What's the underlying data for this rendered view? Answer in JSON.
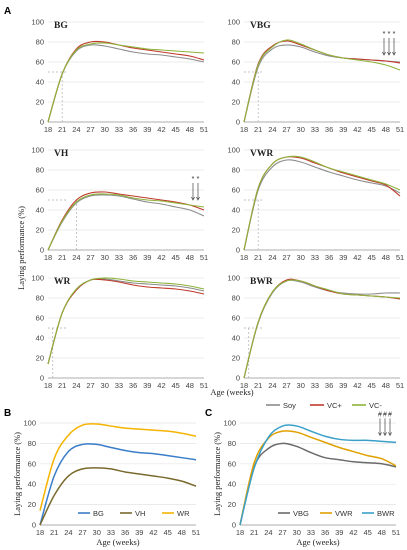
{
  "figure": {
    "panel_letters": [
      "A",
      "B",
      "C"
    ],
    "shared_ylabel": "Laying performance (%)",
    "shared_xlabel": "Age (weeks)",
    "legend_A": [
      "Soy",
      "VC+",
      "VC-"
    ],
    "colors": {
      "Soy": "#8c8c8c",
      "VC+": "#c0392b",
      "VC-": "#8db33a",
      "BG": "#3a7dc9",
      "VH": "#7a6a2e",
      "WR": "#f5b400",
      "VBG": "#6b6b6b",
      "VWR": "#e0a000",
      "BWR": "#3aa0c8",
      "ref_line": "#b0b0b0",
      "arrow": "#444444"
    }
  },
  "chart_data": [
    {
      "panel": "A",
      "title": "BG",
      "type": "line",
      "x": [
        18,
        21,
        24,
        27,
        30,
        33,
        36,
        39,
        42,
        45,
        48,
        51
      ],
      "ylim": [
        0,
        100
      ],
      "yticks": [
        0,
        20,
        40,
        60,
        80,
        100
      ],
      "xticks": [
        18,
        21,
        24,
        27,
        30,
        33,
        36,
        39,
        42,
        45,
        48,
        51
      ],
      "ref_x": 21,
      "ref_y": 50,
      "series": [
        {
          "name": "Soy",
          "values": [
            0,
            48,
            71,
            77,
            76,
            73,
            70,
            68,
            67,
            65,
            63,
            60
          ]
        },
        {
          "name": "VC+",
          "values": [
            0,
            48,
            73,
            80,
            80,
            77,
            74,
            72,
            70,
            68,
            66,
            62
          ]
        },
        {
          "name": "VC-",
          "values": [
            0,
            48,
            72,
            78,
            79,
            77,
            75,
            73,
            72,
            71,
            70,
            69
          ]
        }
      ],
      "significance_marks": []
    },
    {
      "panel": "A",
      "title": "VBG",
      "type": "line",
      "x": [
        18,
        21,
        24,
        27,
        30,
        33,
        36,
        39,
        42,
        45,
        48,
        51
      ],
      "ylim": [
        0,
        100
      ],
      "yticks": [
        0,
        20,
        40,
        60,
        80,
        100
      ],
      "xticks": [
        18,
        21,
        24,
        27,
        30,
        33,
        36,
        39,
        42,
        45,
        48,
        51
      ],
      "ref_x": 21,
      "ref_y": 50,
      "series": [
        {
          "name": "Soy",
          "values": [
            0,
            55,
            73,
            77,
            75,
            70,
            66,
            64,
            63,
            62,
            61,
            60
          ]
        },
        {
          "name": "VC+",
          "values": [
            0,
            58,
            76,
            81,
            77,
            72,
            67,
            64,
            63,
            62,
            61,
            59
          ]
        },
        {
          "name": "VC-",
          "values": [
            0,
            57,
            75,
            82,
            78,
            72,
            67,
            64,
            62,
            60,
            57,
            52
          ]
        }
      ],
      "significance_marks": [
        "*",
        "*",
        "*"
      ]
    },
    {
      "panel": "A",
      "title": "VH",
      "type": "line",
      "x": [
        18,
        21,
        24,
        27,
        30,
        33,
        36,
        39,
        42,
        45,
        48,
        51
      ],
      "ylim": [
        0,
        100
      ],
      "yticks": [
        0,
        20,
        40,
        60,
        80,
        100
      ],
      "xticks": [
        18,
        21,
        24,
        27,
        30,
        33,
        36,
        39,
        42,
        45,
        48,
        51
      ],
      "ref_x": 24,
      "ref_y": 50,
      "series": [
        {
          "name": "Soy",
          "values": [
            0,
            28,
            47,
            54,
            55,
            54,
            51,
            48,
            46,
            43,
            40,
            34
          ]
        },
        {
          "name": "VC+",
          "values": [
            0,
            30,
            50,
            57,
            58,
            56,
            54,
            52,
            50,
            48,
            45,
            40
          ]
        },
        {
          "name": "VC-",
          "values": [
            0,
            29,
            48,
            55,
            56,
            55,
            52,
            50,
            49,
            47,
            45,
            43
          ]
        }
      ],
      "significance_marks": [
        "*",
        "*"
      ]
    },
    {
      "panel": "A",
      "title": "VWR",
      "type": "line",
      "x": [
        18,
        21,
        24,
        27,
        30,
        33,
        36,
        39,
        42,
        45,
        48,
        51
      ],
      "ylim": [
        0,
        100
      ],
      "yticks": [
        0,
        20,
        40,
        60,
        80,
        100
      ],
      "xticks": [
        18,
        21,
        24,
        27,
        30,
        33,
        36,
        39,
        42,
        45,
        48,
        51
      ],
      "ref_x": 21,
      "ref_y": 50,
      "series": [
        {
          "name": "Soy",
          "values": [
            0,
            60,
            83,
            90,
            88,
            83,
            78,
            74,
            70,
            67,
            64,
            57
          ]
        },
        {
          "name": "VC+",
          "values": [
            0,
            62,
            86,
            93,
            92,
            87,
            82,
            77,
            73,
            69,
            65,
            54
          ]
        },
        {
          "name": "VC-",
          "values": [
            0,
            62,
            86,
            93,
            93,
            88,
            82,
            78,
            74,
            70,
            66,
            60
          ]
        }
      ],
      "significance_marks": []
    },
    {
      "panel": "A",
      "title": "WR",
      "type": "line",
      "x": [
        18,
        21,
        24,
        27,
        30,
        33,
        36,
        39,
        42,
        45,
        48,
        51
      ],
      "ylim": [
        0,
        100
      ],
      "yticks": [
        0,
        20,
        40,
        60,
        80,
        100
      ],
      "xticks": [
        18,
        21,
        24,
        27,
        30,
        33,
        36,
        39,
        42,
        45,
        48,
        51
      ],
      "ref_x": 19,
      "ref_y": 50,
      "series": [
        {
          "name": "Soy",
          "values": [
            14,
            65,
            88,
            98,
            99,
            97,
            95,
            94,
            93,
            92,
            90,
            87
          ]
        },
        {
          "name": "VC+",
          "values": [
            14,
            65,
            88,
            98,
            98,
            96,
            93,
            91,
            90,
            89,
            87,
            84
          ]
        },
        {
          "name": "VC-",
          "values": [
            14,
            65,
            89,
            98,
            100,
            99,
            97,
            96,
            95,
            94,
            92,
            89
          ]
        }
      ],
      "significance_marks": []
    },
    {
      "panel": "A",
      "title": "BWR",
      "type": "line",
      "x": [
        18,
        21,
        24,
        27,
        30,
        33,
        36,
        39,
        42,
        45,
        48,
        51
      ],
      "ylim": [
        0,
        100
      ],
      "yticks": [
        0,
        20,
        40,
        60,
        80,
        100
      ],
      "xticks": [
        18,
        21,
        24,
        27,
        30,
        33,
        36,
        39,
        42,
        45,
        48,
        51
      ],
      "ref_x": 19,
      "ref_y": 50,
      "series": [
        {
          "name": "Soy",
          "values": [
            0,
            55,
            85,
            97,
            96,
            91,
            87,
            85,
            84,
            84,
            85,
            85
          ]
        },
        {
          "name": "VC+",
          "values": [
            0,
            56,
            86,
            98,
            97,
            92,
            87,
            84,
            83,
            82,
            81,
            79
          ]
        },
        {
          "name": "VC-",
          "values": [
            0,
            56,
            86,
            97,
            97,
            92,
            88,
            84,
            83,
            82,
            81,
            80
          ]
        }
      ],
      "significance_marks": []
    },
    {
      "panel": "B",
      "title": "",
      "type": "line",
      "xlabel": "Age (weeks)",
      "ylabel": "Laying performance (%)",
      "x": [
        18,
        21,
        24,
        27,
        30,
        33,
        36,
        39,
        42,
        45,
        48,
        51
      ],
      "ylim": [
        0,
        100
      ],
      "yticks": [
        0,
        20,
        40,
        60,
        80,
        100
      ],
      "xticks": [
        18,
        21,
        24,
        27,
        30,
        33,
        36,
        39,
        42,
        45,
        48,
        51
      ],
      "series": [
        {
          "name": "BG",
          "values": [
            0,
            48,
            72,
            79,
            79,
            76,
            73,
            71,
            70,
            68,
            66,
            64
          ]
        },
        {
          "name": "VH",
          "values": [
            0,
            29,
            48,
            55,
            56,
            55,
            52,
            50,
            48,
            46,
            43,
            38
          ]
        },
        {
          "name": "WR",
          "values": [
            14,
            65,
            88,
            98,
            99,
            97,
            95,
            94,
            93,
            92,
            90,
            87
          ]
        }
      ]
    },
    {
      "panel": "C",
      "title": "",
      "type": "line",
      "xlabel": "Age (weeks)",
      "ylabel": "Laying performance (%)",
      "x": [
        18,
        21,
        24,
        27,
        30,
        33,
        36,
        39,
        42,
        45,
        48,
        51
      ],
      "ylim": [
        0,
        100
      ],
      "yticks": [
        0,
        20,
        40,
        60,
        80,
        100
      ],
      "xticks": [
        18,
        21,
        24,
        27,
        30,
        33,
        36,
        39,
        42,
        45,
        48,
        51
      ],
      "series": [
        {
          "name": "VBG",
          "values": [
            0,
            57,
            75,
            80,
            77,
            71,
            66,
            64,
            62,
            61,
            60,
            57
          ]
        },
        {
          "name": "VWR",
          "values": [
            0,
            61,
            85,
            92,
            91,
            86,
            81,
            76,
            72,
            68,
            65,
            58
          ]
        },
        {
          "name": "BWR",
          "values": [
            0,
            56,
            86,
            97,
            97,
            92,
            87,
            84,
            83,
            83,
            82,
            81
          ]
        }
      ],
      "significance_marks": [
        "#",
        "#",
        "#"
      ]
    }
  ]
}
